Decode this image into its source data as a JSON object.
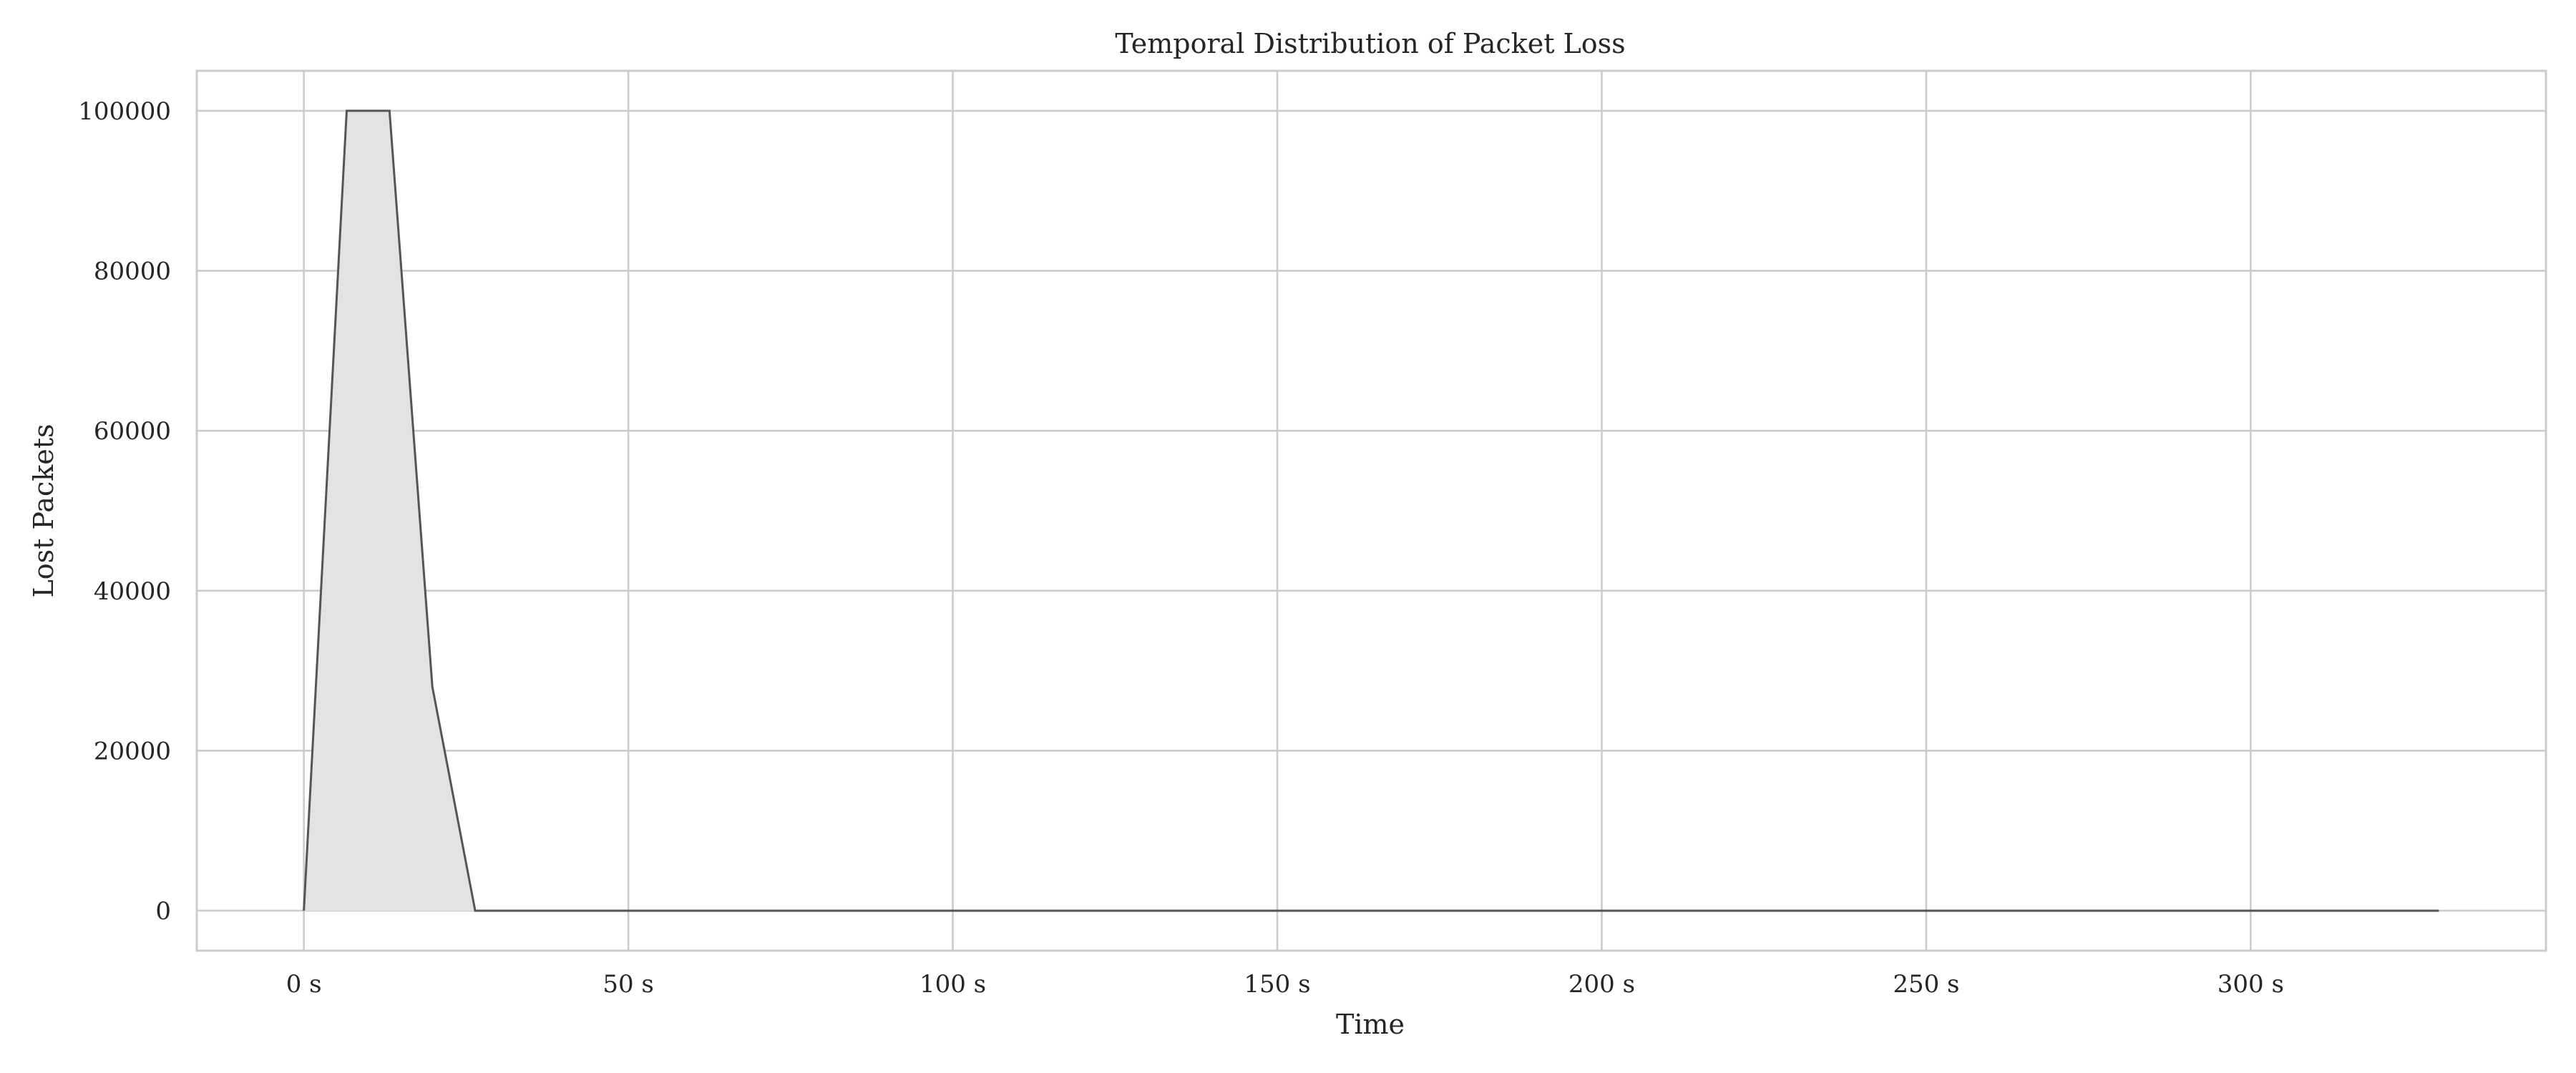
{
  "chart_data": {
    "type": "area",
    "title": "Temporal Distribution of Packet Loss",
    "xlabel": "Time",
    "ylabel": "Lost Packets",
    "x_unit_suffix": " s",
    "xlim": [
      -16.5,
      345.5
    ],
    "ylim": [
      -5000,
      105000
    ],
    "x_ticks": [
      0,
      50,
      100,
      150,
      200,
      250,
      300
    ],
    "x_tick_labels": [
      "0 s",
      "50 s",
      "100 s",
      "150 s",
      "200 s",
      "250 s",
      "300 s"
    ],
    "y_ticks": [
      0,
      20000,
      40000,
      60000,
      80000,
      100000
    ],
    "y_tick_labels": [
      "0",
      "20000",
      "40000",
      "60000",
      "80000",
      "100000"
    ],
    "grid": true,
    "colors": {
      "fill": "#e3e3e3",
      "line": "#555555",
      "grid": "#cccccc",
      "text": "#262626"
    },
    "series": [
      {
        "x": [
          0,
          6.6,
          13.2,
          19.8,
          26.4,
          33,
          66,
          99,
          132,
          165,
          198,
          231,
          264,
          297,
          329
        ],
        "values": [
          0,
          100000,
          100000,
          28000,
          0,
          0,
          0,
          0,
          0,
          0,
          0,
          0,
          0,
          0,
          0
        ]
      }
    ]
  }
}
